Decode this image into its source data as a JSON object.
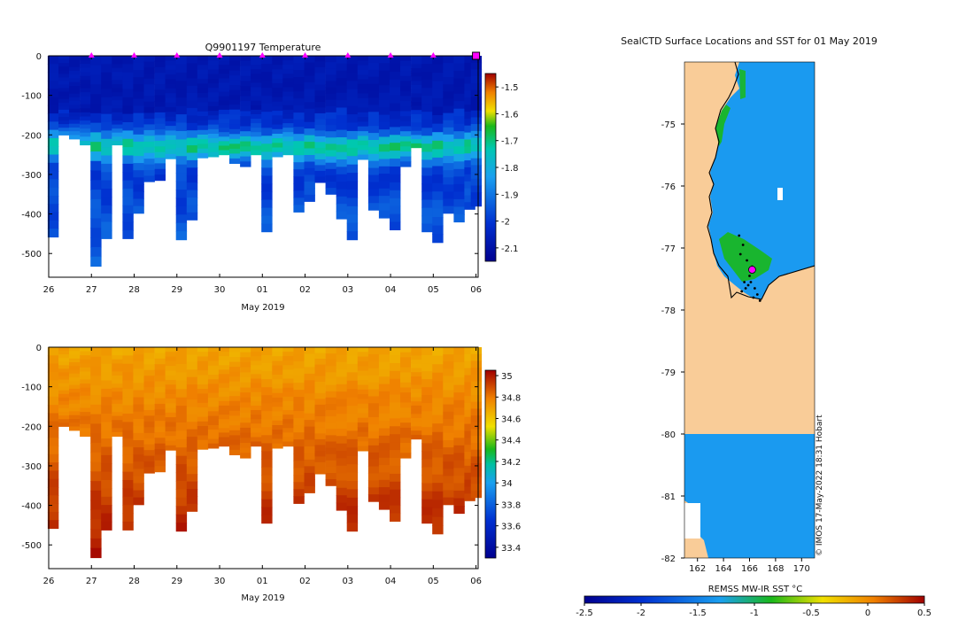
{
  "colors": {
    "land": "#f9cc98",
    "ocean": "#1a9af0",
    "marker": "#ff00ff",
    "axis": "#000000"
  },
  "chart_data": [
    {
      "type": "heatmap",
      "title": "Q9901197  Temperature",
      "xlabel": "May 2019",
      "ylabel": "",
      "xlim": [
        26,
        36.05
      ],
      "ylim": [
        0,
        -560
      ],
      "x_tick_values": [
        26,
        27,
        28,
        29,
        30,
        31,
        32,
        33,
        34,
        35,
        36
      ],
      "x_tick_labels": [
        "26",
        "27",
        "28",
        "29",
        "30",
        "01",
        "02",
        "03",
        "04",
        "05",
        "06"
      ],
      "y_tick_values": [
        0,
        -100,
        -200,
        -300,
        -400,
        -500
      ],
      "y_tick_labels": [
        "0",
        "-100",
        "-200",
        "-300",
        "-400",
        "-500"
      ],
      "profile_times": [
        26.1,
        26.35,
        26.6,
        26.85,
        27.1,
        27.35,
        27.6,
        27.85,
        28.1,
        28.35,
        28.6,
        28.85,
        29.1,
        29.35,
        29.6,
        29.85,
        30.1,
        30.35,
        30.6,
        30.85,
        31.1,
        31.35,
        31.6,
        31.85,
        32.1,
        32.35,
        32.6,
        32.85,
        33.1,
        33.35,
        33.6,
        33.85,
        34.1,
        34.35,
        34.6,
        34.85,
        35.1,
        35.35,
        35.6,
        35.85,
        36.0
      ],
      "profile_max_depths": [
        -458,
        -200,
        -210,
        -225,
        -532,
        -462,
        -225,
        -462,
        -398,
        -318,
        -315,
        -260,
        -465,
        -415,
        -258,
        -255,
        -250,
        -272,
        -280,
        -250,
        -445,
        -255,
        -250,
        -395,
        -368,
        -320,
        -350,
        -412,
        -465,
        -262,
        -390,
        -410,
        -440,
        -280,
        -232,
        -445,
        -472,
        -398,
        -420,
        -388,
        -380
      ],
      "colorbar": {
        "min": -2.15,
        "max": -1.45,
        "tick_values": [
          -1.5,
          -1.6,
          -1.7,
          -1.8,
          -1.9,
          -2,
          -2.1
        ],
        "tick_labels": [
          "-1.5",
          "-1.6",
          "-1.7",
          "-1.8",
          "-1.9",
          "-2",
          "-2.1"
        ]
      },
      "surface_markers_x": [
        27,
        28,
        29,
        30,
        31,
        32,
        33,
        34,
        35,
        36
      ]
    },
    {
      "type": "heatmap",
      "title": "",
      "xlabel": "May 2019",
      "ylabel": "",
      "xlim": [
        26,
        36.05
      ],
      "ylim": [
        0,
        -560
      ],
      "x_tick_values": [
        26,
        27,
        28,
        29,
        30,
        31,
        32,
        33,
        34,
        35,
        36
      ],
      "x_tick_labels": [
        "26",
        "27",
        "28",
        "29",
        "30",
        "01",
        "02",
        "03",
        "04",
        "05",
        "06"
      ],
      "y_tick_values": [
        0,
        -100,
        -200,
        -300,
        -400,
        -500
      ],
      "y_tick_labels": [
        "0",
        "-100",
        "-200",
        "-300",
        "-400",
        "-500"
      ],
      "colorbar": {
        "min": 33.3,
        "max": 35.05,
        "tick_values": [
          35,
          34.8,
          34.6,
          34.4,
          34.2,
          34,
          33.8,
          33.6,
          33.4
        ],
        "tick_labels": [
          "35",
          "34.8",
          "34.6",
          "34.4",
          "34.2",
          "34",
          "33.8",
          "33.6",
          "33.4"
        ]
      }
    },
    {
      "type": "heatmap",
      "title": "SealCTD Surface Locations and SST for 01 May 2019",
      "xlim": [
        161,
        171
      ],
      "ylim": [
        -82,
        -74
      ],
      "x_tick_values": [
        162,
        164,
        166,
        168,
        170
      ],
      "x_tick_labels": [
        "162",
        "164",
        "166",
        "168",
        "170"
      ],
      "y_tick_values": [
        -75,
        -76,
        -77,
        -78,
        -79,
        -80,
        -81,
        -82
      ],
      "y_tick_labels": [
        "-75",
        "-76",
        "-77",
        "-78",
        "-79",
        "-80",
        "-81",
        "-82"
      ],
      "colorbar": {
        "label": "REMSS MW-IR SST °C",
        "min": -2.5,
        "max": 0.5,
        "tick_values": [
          -2.5,
          -2,
          -1.5,
          -1,
          -0.5,
          0,
          0.5
        ],
        "tick_labels": [
          "-2.5",
          "-2",
          "-1.5",
          "-1",
          "-0.5",
          "0",
          "0.5"
        ]
      },
      "credit": "© IMOS 17-May-2022 18:31 Hobart",
      "track_points": [
        [
          165.2,
          -76.8
        ],
        [
          165.5,
          -76.95
        ],
        [
          165.3,
          -77.1
        ],
        [
          165.8,
          -77.2
        ],
        [
          166.2,
          -77.3
        ],
        [
          166.0,
          -77.45
        ],
        [
          165.6,
          -77.55
        ],
        [
          165.9,
          -77.6
        ],
        [
          166.4,
          -77.65
        ],
        [
          166.6,
          -77.75
        ],
        [
          166.3,
          -77.8
        ],
        [
          166.8,
          -77.85
        ],
        [
          165.4,
          -77.7
        ],
        [
          165.7,
          -77.65
        ],
        [
          166.1,
          -77.55
        ]
      ],
      "latest_position": [
        166.2,
        -77.35
      ]
    }
  ]
}
